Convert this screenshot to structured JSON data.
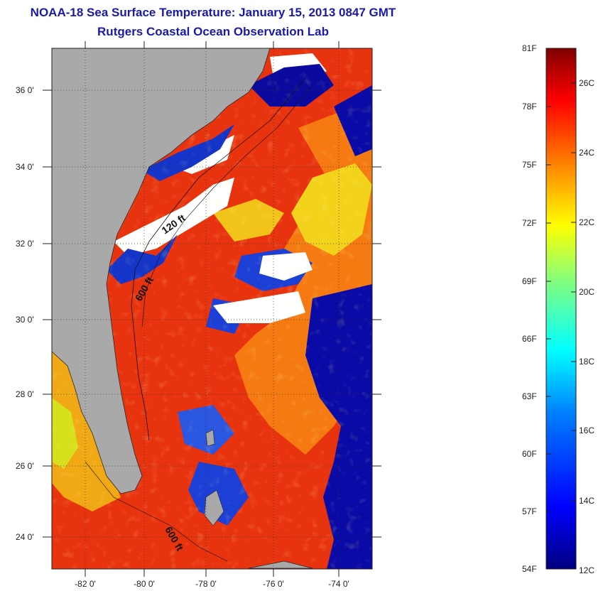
{
  "title": "NOAA-18 Sea Surface Temperature:  January 15, 2013 0847 GMT",
  "subtitle": "Rutgers Coastal Ocean Observation Lab",
  "map": {
    "lat_ticks": [
      "36 0'",
      "34 0'",
      "32 0'",
      "30 0'",
      "28 0'",
      "26 0'",
      "24 0'"
    ],
    "lon_ticks": [
      "-82 0'",
      "-80 0'",
      "-78 0'",
      "-76 0'",
      "-74 0'"
    ],
    "contour_labels": [
      "120 ft",
      "600 ft",
      "600 ft"
    ],
    "colors": {
      "land": "#a9a9a9",
      "cloud": "#ffffff",
      "warm": "#e8250d",
      "cold": "#0a0a9e"
    }
  },
  "colorbar": {
    "fahrenheit_labels": [
      "81F",
      "78F",
      "75F",
      "72F",
      "69F",
      "66F",
      "63F",
      "60F",
      "57F",
      "54F"
    ],
    "celsius_labels": [
      "26C",
      "24C",
      "22C",
      "20C",
      "18C",
      "16C",
      "14C",
      "12C"
    ]
  }
}
